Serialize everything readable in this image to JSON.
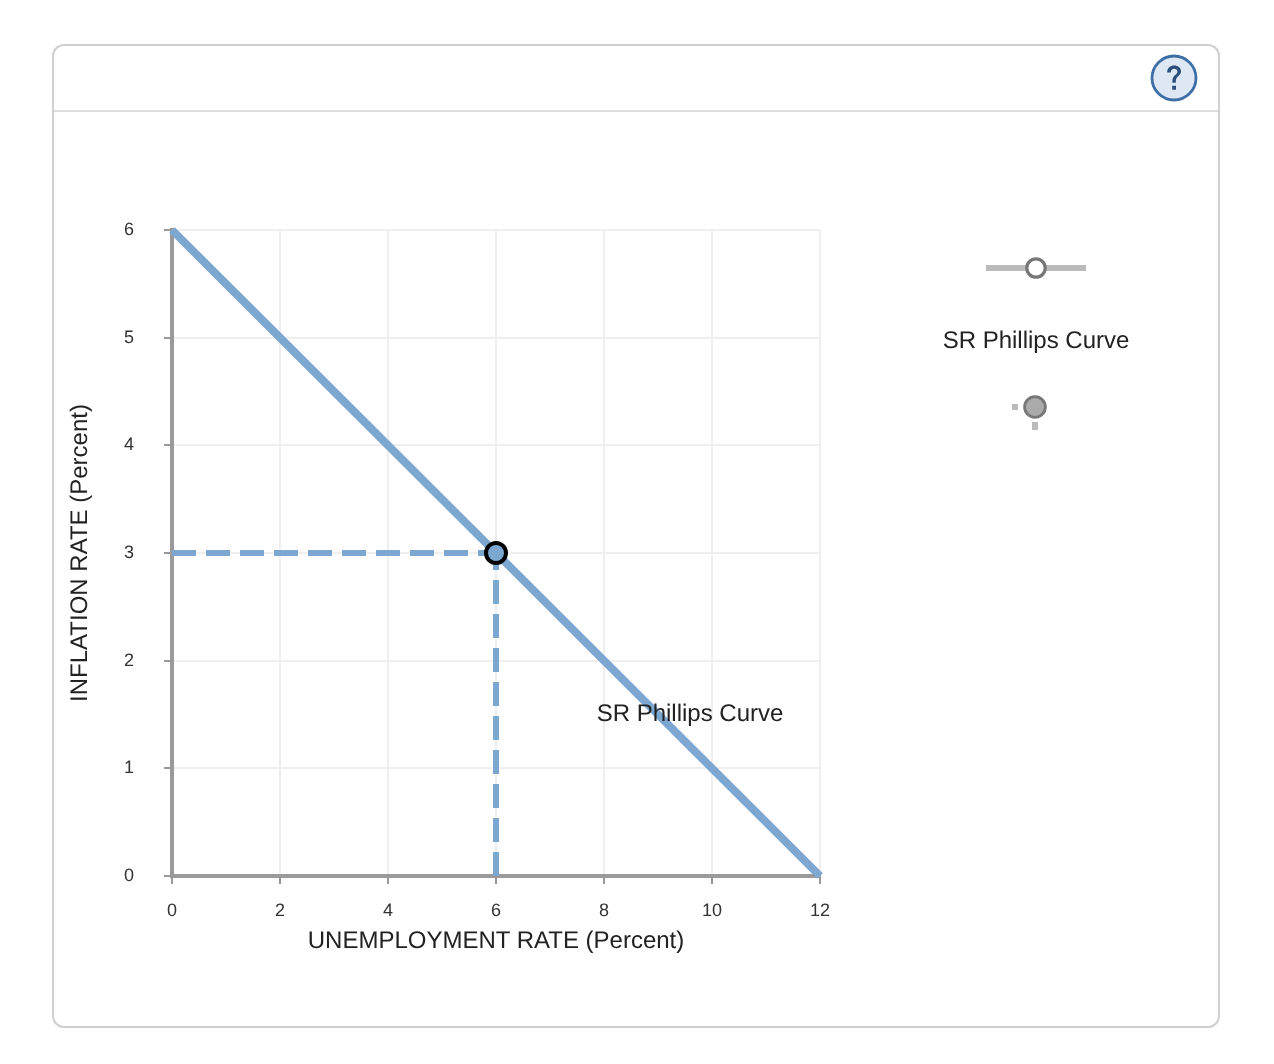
{
  "chart_data": {
    "type": "line",
    "xlabel": "UNEMPLOYMENT RATE (Percent)",
    "ylabel": "INFLATION RATE (Percent)",
    "xlim": [
      0,
      12
    ],
    "ylim": [
      0,
      6
    ],
    "xticks": [
      0,
      2,
      4,
      6,
      8,
      10,
      12
    ],
    "yticks": [
      0,
      1,
      2,
      3,
      4,
      5,
      6
    ],
    "grid": true,
    "series": [
      {
        "name": "SR Phillips Curve",
        "color": "#7ba7d1",
        "x": [
          0,
          12
        ],
        "values": [
          6,
          0
        ],
        "marker": "none",
        "line_style": "solid"
      },
      {
        "color": "#7ba7d1",
        "x": [
          0,
          6
        ],
        "values": [
          3,
          3
        ],
        "marker": "none",
        "line_style": "dashed"
      },
      {
        "color": "#7ba7d1",
        "x": [
          6,
          6
        ],
        "values": [
          0,
          3
        ],
        "marker": "none",
        "line_style": "dashed"
      },
      {
        "type": "scatter",
        "color": "#7ba7d1",
        "x": [
          6
        ],
        "values": [
          3
        ],
        "marker": "circle"
      }
    ],
    "annotations": [
      "SR Phillips Curve"
    ]
  }
}
